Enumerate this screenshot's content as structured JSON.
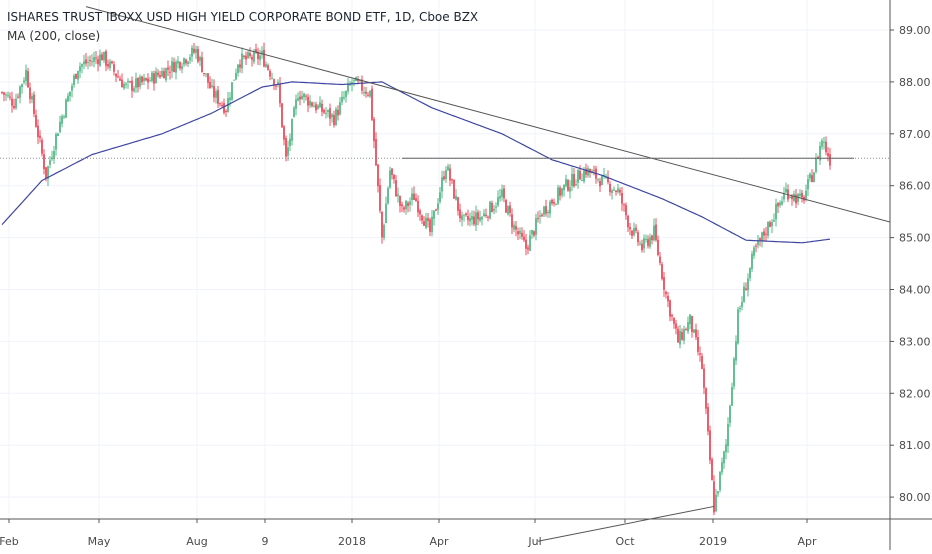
{
  "chart_data": {
    "type": "candlestick",
    "title": "ISHARES TRUST IBOXX USD HIGH YIELD CORPORATE BOND ETF, 1D, Cboe BZX",
    "indicator_label": "MA (200, close)",
    "y_ticks": [
      "89.00",
      "88.00",
      "87.00",
      "86.00",
      "85.00",
      "84.00",
      "83.00",
      "82.00",
      "81.00",
      "80.00"
    ],
    "x_ticks": [
      "Feb",
      "May",
      "Aug",
      "9",
      "2018",
      "Apr",
      "Jul",
      "Oct",
      "2019",
      "Apr"
    ],
    "ylim": [
      79.1,
      89.45
    ],
    "last_price": 86.53,
    "colors": {
      "up": "#53b987",
      "down": "#eb4d5c",
      "ma": "#3f46a2",
      "trendline": "#555555",
      "grid": "#f0f3fa",
      "axis": "#555555"
    },
    "anchors": [
      {
        "i": 0,
        "v": 87.8
      },
      {
        "i": 6,
        "v": 87.6
      },
      {
        "i": 12,
        "v": 88.2
      },
      {
        "i": 18,
        "v": 87.0
      },
      {
        "i": 22,
        "v": 86.2
      },
      {
        "i": 28,
        "v": 87.1
      },
      {
        "i": 38,
        "v": 88.3
      },
      {
        "i": 50,
        "v": 88.5
      },
      {
        "i": 62,
        "v": 87.9
      },
      {
        "i": 72,
        "v": 88.0
      },
      {
        "i": 85,
        "v": 88.3
      },
      {
        "i": 97,
        "v": 88.6
      },
      {
        "i": 105,
        "v": 87.8
      },
      {
        "i": 112,
        "v": 87.5
      },
      {
        "i": 118,
        "v": 88.4
      },
      {
        "i": 130,
        "v": 88.5
      },
      {
        "i": 138,
        "v": 87.9
      },
      {
        "i": 142,
        "v": 86.5
      },
      {
        "i": 148,
        "v": 87.8
      },
      {
        "i": 158,
        "v": 87.5
      },
      {
        "i": 166,
        "v": 87.3
      },
      {
        "i": 175,
        "v": 88.0
      },
      {
        "i": 184,
        "v": 87.8
      },
      {
        "i": 190,
        "v": 85.0
      },
      {
        "i": 194,
        "v": 86.3
      },
      {
        "i": 200,
        "v": 85.5
      },
      {
        "i": 206,
        "v": 85.8
      },
      {
        "i": 214,
        "v": 85.1
      },
      {
        "i": 222,
        "v": 86.4
      },
      {
        "i": 230,
        "v": 85.3
      },
      {
        "i": 240,
        "v": 85.4
      },
      {
        "i": 250,
        "v": 85.8
      },
      {
        "i": 256,
        "v": 85.2
      },
      {
        "i": 262,
        "v": 84.8
      },
      {
        "i": 270,
        "v": 85.5
      },
      {
        "i": 282,
        "v": 86.0
      },
      {
        "i": 292,
        "v": 86.3
      },
      {
        "i": 300,
        "v": 86.1
      },
      {
        "i": 308,
        "v": 85.9
      },
      {
        "i": 314,
        "v": 85.2
      },
      {
        "i": 320,
        "v": 84.8
      },
      {
        "i": 326,
        "v": 85.1
      },
      {
        "i": 332,
        "v": 83.9
      },
      {
        "i": 338,
        "v": 83.0
      },
      {
        "i": 344,
        "v": 83.4
      },
      {
        "i": 350,
        "v": 82.5
      },
      {
        "i": 356,
        "v": 79.8
      },
      {
        "i": 362,
        "v": 81.0
      },
      {
        "i": 368,
        "v": 83.5
      },
      {
        "i": 376,
        "v": 84.7
      },
      {
        "i": 384,
        "v": 85.3
      },
      {
        "i": 392,
        "v": 85.9
      },
      {
        "i": 400,
        "v": 85.7
      },
      {
        "i": 406,
        "v": 86.3
      },
      {
        "i": 410,
        "v": 86.9
      },
      {
        "i": 414,
        "v": 86.5
      }
    ],
    "ma_anchors": [
      {
        "i": 0,
        "v": 85.25
      },
      {
        "i": 20,
        "v": 86.1
      },
      {
        "i": 45,
        "v": 86.6
      },
      {
        "i": 80,
        "v": 87.0
      },
      {
        "i": 105,
        "v": 87.4
      },
      {
        "i": 130,
        "v": 87.9
      },
      {
        "i": 145,
        "v": 88.0
      },
      {
        "i": 170,
        "v": 87.95
      },
      {
        "i": 190,
        "v": 88.0
      },
      {
        "i": 215,
        "v": 87.5
      },
      {
        "i": 250,
        "v": 87.0
      },
      {
        "i": 275,
        "v": 86.5
      },
      {
        "i": 300,
        "v": 86.2
      },
      {
        "i": 330,
        "v": 85.75
      },
      {
        "i": 350,
        "v": 85.4
      },
      {
        "i": 372,
        "v": 84.95
      },
      {
        "i": 400,
        "v": 84.9
      },
      {
        "i": 414,
        "v": 84.97
      }
    ],
    "lines": [
      {
        "from": {
          "i": 42,
          "v": 89.45
        },
        "to": {
          "i": 444,
          "v": 85.3
        }
      },
      {
        "from": {
          "i": 200,
          "v": 86.53
        },
        "to": {
          "i": 426,
          "v": 86.53
        }
      },
      {
        "from": {
          "i": 268,
          "v": 79.15
        },
        "to": {
          "i": 356,
          "v": 79.82
        }
      }
    ]
  }
}
